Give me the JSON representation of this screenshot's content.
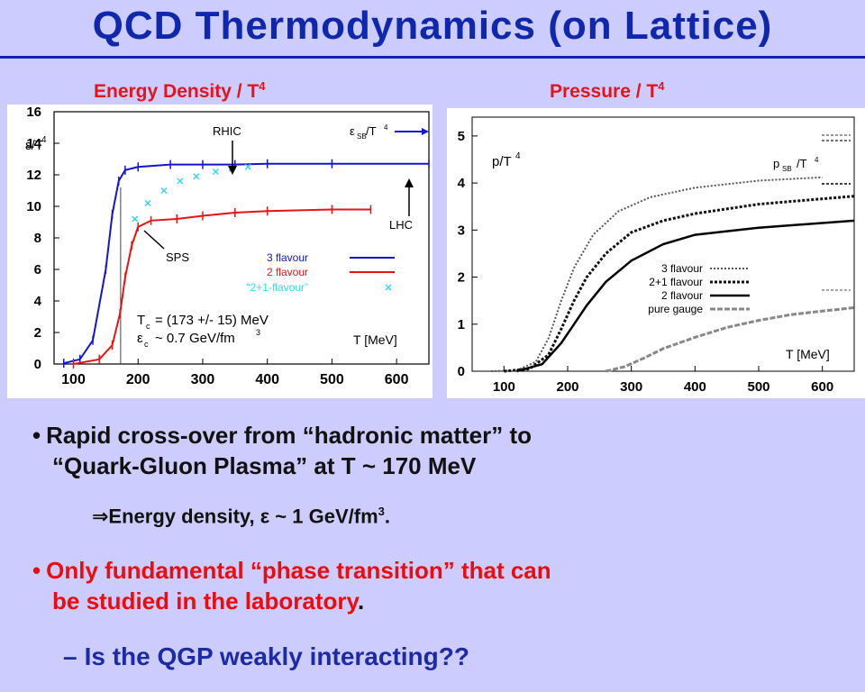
{
  "slide": {
    "title": "QCD Thermodynamics (on Lattice)",
    "left_heading": "Energy Density / T",
    "left_heading_sup": "4",
    "right_heading": "Pressure / T",
    "right_heading_sup": "4"
  },
  "bullets": [
    {
      "mark": "•",
      "line1": "Rapid cross-over from “hadronic matter” to",
      "line2": "“Quark-Gluon Plasma” at T ~ 170 MeV"
    },
    {
      "mark": "•",
      "line1": "Only fundamental “phase transition” that can",
      "line2": "be studied in the laboratory",
      "line2_tail": "."
    }
  ],
  "sub_points": {
    "energy_prefix": "⇒Energy density, ε ~ 1 GeV/fm",
    "energy_sup": "3",
    "energy_tail": ".",
    "question_dash": "–",
    "question": "Is the QGP weakly interacting??"
  },
  "chart_data": [
    {
      "type": "line",
      "ylabel": "ε/T",
      "ylabel_sup": "4",
      "xlabel": "T [MeV]",
      "xlim": [
        70,
        650
      ],
      "ylim": [
        0,
        16
      ],
      "x_ticks": [
        100,
        200,
        300,
        400,
        500,
        600
      ],
      "y_ticks": [
        0,
        2,
        4,
        6,
        8,
        10,
        12,
        14,
        16
      ],
      "annotations": [
        "RHIC",
        "LHC",
        "SPS",
        "ε",
        "SB",
        "T",
        "4"
      ],
      "info_lines": [
        "T",
        "c",
        "= (173 +/- 15) MeV",
        "ε",
        "c",
        "~ 0.7 GeV/fm",
        "3"
      ],
      "colors": {
        "three": "#1414d2",
        "two": "#e71414",
        "two_plus_one": "#35d8f0"
      },
      "series": [
        {
          "name": "3 flavour",
          "x": [
            85,
            110,
            130,
            150,
            160,
            170,
            180,
            200,
            250,
            300,
            350,
            400,
            500,
            650
          ],
          "values": [
            0.05,
            0.3,
            1.5,
            6,
            9.5,
            11.6,
            12.3,
            12.5,
            12.65,
            12.65,
            12.65,
            12.7,
            12.7,
            12.7
          ]
        },
        {
          "name": "2 flavour",
          "x": [
            100,
            140,
            160,
            172,
            180,
            190,
            200,
            220,
            260,
            300,
            350,
            400,
            500,
            560
          ],
          "values": [
            0,
            0.3,
            1.2,
            3.2,
            5.5,
            7.5,
            8.7,
            9.1,
            9.2,
            9.4,
            9.6,
            9.7,
            9.8,
            9.8
          ]
        },
        {
          "name": "“2+1-flavour”",
          "x": [
            195,
            215,
            240,
            265,
            290,
            320,
            345,
            370
          ],
          "values": [
            9.2,
            10.2,
            11.0,
            11.6,
            11.9,
            12.2,
            12.4,
            12.5
          ],
          "marker": "x"
        }
      ]
    },
    {
      "type": "line",
      "ylabel": "p/T",
      "ylabel_sup": "4",
      "xlabel": "T [MeV]",
      "xlim": [
        50,
        650
      ],
      "ylim": [
        0,
        5.4
      ],
      "x_ticks": [
        100,
        200,
        300,
        400,
        500,
        600
      ],
      "y_ticks": [
        0,
        1,
        2,
        3,
        4,
        5
      ],
      "annotations": [
        "p",
        "SB",
        "T",
        "4"
      ],
      "series": [
        {
          "name": "3 flavour",
          "x": [
            80,
            120,
            150,
            170,
            190,
            210,
            240,
            280,
            330,
            400,
            500,
            600
          ],
          "values": [
            0,
            0.02,
            0.2,
            0.7,
            1.5,
            2.2,
            2.9,
            3.4,
            3.7,
            3.9,
            4.05,
            4.12
          ],
          "style": "dotted-light"
        },
        {
          "name": "2+1 flavour",
          "x": [
            100,
            140,
            170,
            190,
            210,
            230,
            260,
            300,
            350,
            400,
            500,
            650
          ],
          "values": [
            0,
            0.05,
            0.35,
            0.9,
            1.5,
            2.0,
            2.5,
            2.95,
            3.2,
            3.35,
            3.55,
            3.72
          ],
          "style": "dotted-heavy"
        },
        {
          "name": "2 flavour",
          "x": [
            120,
            160,
            190,
            210,
            230,
            260,
            300,
            350,
            400,
            500,
            650
          ],
          "values": [
            0,
            0.15,
            0.6,
            1.0,
            1.4,
            1.9,
            2.35,
            2.7,
            2.9,
            3.05,
            3.2
          ],
          "style": "solid"
        },
        {
          "name": "pure gauge",
          "x": [
            260,
            270,
            290,
            320,
            350,
            400,
            450,
            500,
            550,
            600,
            650
          ],
          "values": [
            0,
            0.03,
            0.1,
            0.28,
            0.48,
            0.72,
            0.93,
            1.08,
            1.2,
            1.28,
            1.35
          ],
          "style": "dashed-grey"
        }
      ]
    }
  ]
}
